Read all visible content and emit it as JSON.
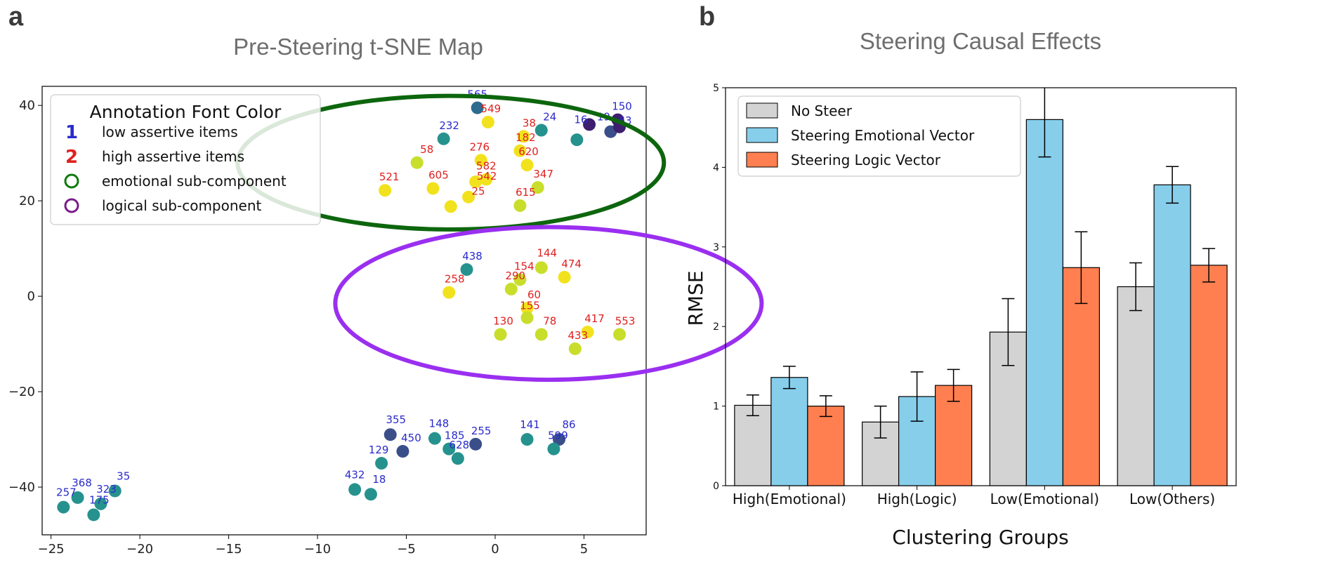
{
  "panel_a": {
    "letter": "a"
  },
  "panel_b": {
    "letter": "b"
  },
  "chart_data": [
    {
      "type": "scatter",
      "title": "Pre-Steering t-SNE Map",
      "xlabel": "",
      "ylabel": "",
      "xlim": [
        -25.5,
        8.5
      ],
      "ylim": [
        -50,
        44
      ],
      "xticks": [
        -25,
        -20,
        -15,
        -10,
        -5,
        0,
        5
      ],
      "yticks": [
        -40,
        -20,
        0,
        20,
        40
      ],
      "colors": {
        "low_label": "#2a2acc",
        "high_label": "#e02020",
        "teal": "#26928e",
        "blue_teal": "#2d6b8e",
        "dark_blue": "#3a4f8a",
        "purple": "#3e1e6e",
        "yellow": "#f2e21d",
        "lime": "#c8de2a",
        "emotional_ellipse": "#0d660d",
        "logical_ellipse": "#9a2ff0"
      },
      "legend": {
        "title": "Annotation Font Color",
        "position": "top-left",
        "entries": [
          {
            "marker": "1",
            "marker_color": "#2a2acc",
            "text": "low assertive items"
          },
          {
            "marker": "2",
            "marker_color": "#e02020",
            "text": "high assertive items"
          },
          {
            "marker": "ring",
            "marker_color": "#0d7a0d",
            "text": "emotional sub-component"
          },
          {
            "marker": "ring",
            "marker_color": "#7a1a8a",
            "text": "logical sub-component"
          }
        ]
      },
      "ellipses": [
        {
          "name": "emotional",
          "cx": -2.5,
          "cy": 28,
          "rx": 12,
          "ry": 14
        },
        {
          "name": "logical",
          "cx": 3,
          "cy": -1.5,
          "rx": 12,
          "ry": 16
        }
      ],
      "points": [
        {
          "x": -1,
          "y": 39.5,
          "c": "blue_teal",
          "label": "565",
          "lc": "low",
          "dx": 0,
          "dy": -14
        },
        {
          "x": -0.4,
          "y": 36.5,
          "c": "yellow",
          "label": "549",
          "lc": "high",
          "dx": 4,
          "dy": -14
        },
        {
          "x": 1.6,
          "y": 33.5,
          "c": "yellow",
          "label": "38",
          "lc": "high",
          "dx": 8,
          "dy": -14
        },
        {
          "x": 2.6,
          "y": 34.8,
          "c": "teal",
          "label": "24",
          "lc": "low",
          "dx": 12,
          "dy": -14
        },
        {
          "x": -2.9,
          "y": 33,
          "c": "teal",
          "label": "232",
          "lc": "low",
          "dx": 8,
          "dy": -14
        },
        {
          "x": 1.4,
          "y": 30.5,
          "c": "yellow",
          "label": "182",
          "lc": "high",
          "dx": 8,
          "dy": -14
        },
        {
          "x": -0.8,
          "y": 28.5,
          "c": "yellow",
          "label": "276",
          "lc": "high",
          "dx": -2,
          "dy": -14
        },
        {
          "x": -4.4,
          "y": 28,
          "c": "lime",
          "label": "58",
          "lc": "high",
          "dx": 14,
          "dy": -14
        },
        {
          "x": 1.8,
          "y": 27.5,
          "c": "yellow",
          "label": "620",
          "lc": "high",
          "dx": 2,
          "dy": -14
        },
        {
          "x": -0.5,
          "y": 24.5,
          "c": "yellow",
          "label": "582",
          "lc": "high",
          "dx": 0,
          "dy": -14
        },
        {
          "x": -1.1,
          "y": 24,
          "c": "yellow",
          "label": "542",
          "lc": "high",
          "dx": 16,
          "dy": -3
        },
        {
          "x": 2.4,
          "y": 22.8,
          "c": "lime",
          "label": "347",
          "lc": "high",
          "dx": 8,
          "dy": -14
        },
        {
          "x": -6.2,
          "y": 22.2,
          "c": "yellow",
          "label": "521",
          "lc": "high",
          "dx": 6,
          "dy": -14
        },
        {
          "x": -3.5,
          "y": 22.6,
          "c": "yellow",
          "label": "605",
          "lc": "high",
          "dx": 8,
          "dy": -14
        },
        {
          "x": -1.5,
          "y": 20.8,
          "c": "yellow",
          "label": "25",
          "lc": "high",
          "dx": 14,
          "dy": -3
        },
        {
          "x": 1.4,
          "y": 19,
          "c": "lime",
          "label": "615",
          "lc": "high",
          "dx": 8,
          "dy": -14
        },
        {
          "x": -2.5,
          "y": 18.8,
          "c": "yellow",
          "label": "",
          "lc": "high",
          "dx": 0,
          "dy": 0
        },
        {
          "x": 4.6,
          "y": 32.8,
          "c": "teal",
          "label": "",
          "lc": "low",
          "dx": 0,
          "dy": 0
        },
        {
          "x": 5.3,
          "y": 36,
          "c": "purple",
          "label": "16",
          "lc": "low",
          "dx": -12,
          "dy": -2
        },
        {
          "x": 6.5,
          "y": 34.5,
          "c": "dark_blue",
          "label": "19",
          "lc": "low",
          "dx": -10,
          "dy": -16
        },
        {
          "x": 6.9,
          "y": 37,
          "c": "purple",
          "label": "150",
          "lc": "low",
          "dx": 6,
          "dy": -14
        },
        {
          "x": 7.0,
          "y": 35.5,
          "c": "purple",
          "label": "63",
          "lc": "low",
          "dx": 8,
          "dy": -4
        },
        {
          "x": -1.6,
          "y": 5.6,
          "c": "teal",
          "label": "438",
          "lc": "low",
          "dx": 8,
          "dy": -14
        },
        {
          "x": 2.6,
          "y": 6,
          "c": "lime",
          "label": "144",
          "lc": "high",
          "dx": 8,
          "dy": -16
        },
        {
          "x": 3.9,
          "y": 4,
          "c": "yellow",
          "label": "474",
          "lc": "high",
          "dx": 10,
          "dy": -14
        },
        {
          "x": 1.4,
          "y": 3.5,
          "c": "lime",
          "label": "154",
          "lc": "high",
          "dx": 6,
          "dy": -14
        },
        {
          "x": 0.9,
          "y": 1.5,
          "c": "lime",
          "label": "290",
          "lc": "high",
          "dx": 6,
          "dy": -14
        },
        {
          "x": -2.6,
          "y": 0.8,
          "c": "yellow",
          "label": "258",
          "lc": "high",
          "dx": 8,
          "dy": -14
        },
        {
          "x": 1.8,
          "y": -2.5,
          "c": "yellow",
          "label": "60",
          "lc": "high",
          "dx": 10,
          "dy": -14
        },
        {
          "x": 1.8,
          "y": -4.5,
          "c": "lime",
          "label": "155",
          "lc": "high",
          "dx": 4,
          "dy": -12
        },
        {
          "x": 0.3,
          "y": -8,
          "c": "lime",
          "label": "130",
          "lc": "high",
          "dx": 4,
          "dy": -14
        },
        {
          "x": 2.6,
          "y": -8,
          "c": "lime",
          "label": "78",
          "lc": "high",
          "dx": 12,
          "dy": -14
        },
        {
          "x": 5.2,
          "y": -7.5,
          "c": "yellow",
          "label": "417",
          "lc": "high",
          "dx": 10,
          "dy": -14
        },
        {
          "x": 7.0,
          "y": -8,
          "c": "lime",
          "label": "553",
          "lc": "high",
          "dx": 8,
          "dy": -14
        },
        {
          "x": 4.5,
          "y": -11,
          "c": "lime",
          "label": "433",
          "lc": "high",
          "dx": 4,
          "dy": -14
        },
        {
          "x": -5.9,
          "y": -29,
          "c": "dark_blue",
          "label": "355",
          "lc": "low",
          "dx": 8,
          "dy": -16
        },
        {
          "x": -5.2,
          "y": -32.5,
          "c": "dark_blue",
          "label": "450",
          "lc": "low",
          "dx": 12,
          "dy": -14
        },
        {
          "x": -3.4,
          "y": -29.8,
          "c": "teal",
          "label": "148",
          "lc": "low",
          "dx": 6,
          "dy": -16
        },
        {
          "x": -2.6,
          "y": -32,
          "c": "teal",
          "label": "185",
          "lc": "low",
          "dx": 8,
          "dy": -14
        },
        {
          "x": -1.1,
          "y": -31,
          "c": "dark_blue",
          "label": "255",
          "lc": "low",
          "dx": 8,
          "dy": -14
        },
        {
          "x": -2.1,
          "y": -34,
          "c": "teal",
          "label": "628",
          "lc": "low",
          "dx": 2,
          "dy": -14
        },
        {
          "x": -6.4,
          "y": -35,
          "c": "teal",
          "label": "129",
          "lc": "low",
          "dx": -4,
          "dy": -14
        },
        {
          "x": 1.8,
          "y": -30,
          "c": "teal",
          "label": "141",
          "lc": "low",
          "dx": 4,
          "dy": -16
        },
        {
          "x": 3.6,
          "y": -30,
          "c": "dark_blue",
          "label": "86",
          "lc": "low",
          "dx": 14,
          "dy": -16
        },
        {
          "x": 3.3,
          "y": -32,
          "c": "teal",
          "label": "599",
          "lc": "low",
          "dx": 6,
          "dy": -14
        },
        {
          "x": -7.9,
          "y": -40.5,
          "c": "teal",
          "label": "432",
          "lc": "low",
          "dx": 0,
          "dy": -16
        },
        {
          "x": -7,
          "y": -41.5,
          "c": "teal",
          "label": "18",
          "lc": "low",
          "dx": 12,
          "dy": -16
        },
        {
          "x": -23.5,
          "y": -42.2,
          "c": "teal",
          "label": "368",
          "lc": "low",
          "dx": 6,
          "dy": -16
        },
        {
          "x": -21.4,
          "y": -40.8,
          "c": "teal",
          "label": "35",
          "lc": "low",
          "dx": 12,
          "dy": -16
        },
        {
          "x": -22.2,
          "y": -43.5,
          "c": "teal",
          "label": "323",
          "lc": "low",
          "dx": 8,
          "dy": -16
        },
        {
          "x": -24.3,
          "y": -44.2,
          "c": "teal",
          "label": "257",
          "lc": "low",
          "dx": 4,
          "dy": -16
        },
        {
          "x": -22.6,
          "y": -45.8,
          "c": "teal",
          "label": "175",
          "lc": "low",
          "dx": 8,
          "dy": -16
        }
      ]
    },
    {
      "type": "bar",
      "title": "Steering Causal Effects",
      "xlabel": "Clustering Groups",
      "ylabel": "RMSE",
      "ylim": [
        0,
        5
      ],
      "yticks": [
        0,
        1,
        2,
        3,
        4,
        5
      ],
      "categories": [
        "High(Emotional)",
        "High(Logic)",
        "Low(Emotional)",
        "Low(Others)"
      ],
      "legend_position": "top-left",
      "series": [
        {
          "name": "No Steer",
          "color": "#d3d3d3",
          "values": [
            1.01,
            0.8,
            1.93,
            2.5
          ],
          "errors": [
            0.13,
            0.2,
            0.42,
            0.3
          ]
        },
        {
          "name": "Steering Emotional Vector",
          "color": "#87ceeb",
          "values": [
            1.36,
            1.12,
            4.6,
            3.78
          ],
          "errors": [
            0.14,
            0.31,
            0.47,
            0.23
          ]
        },
        {
          "name": "Steering Logic Vector",
          "color": "#ff7f50",
          "values": [
            1.0,
            1.26,
            2.74,
            2.77
          ],
          "errors": [
            0.13,
            0.2,
            0.45,
            0.21
          ]
        }
      ]
    }
  ]
}
